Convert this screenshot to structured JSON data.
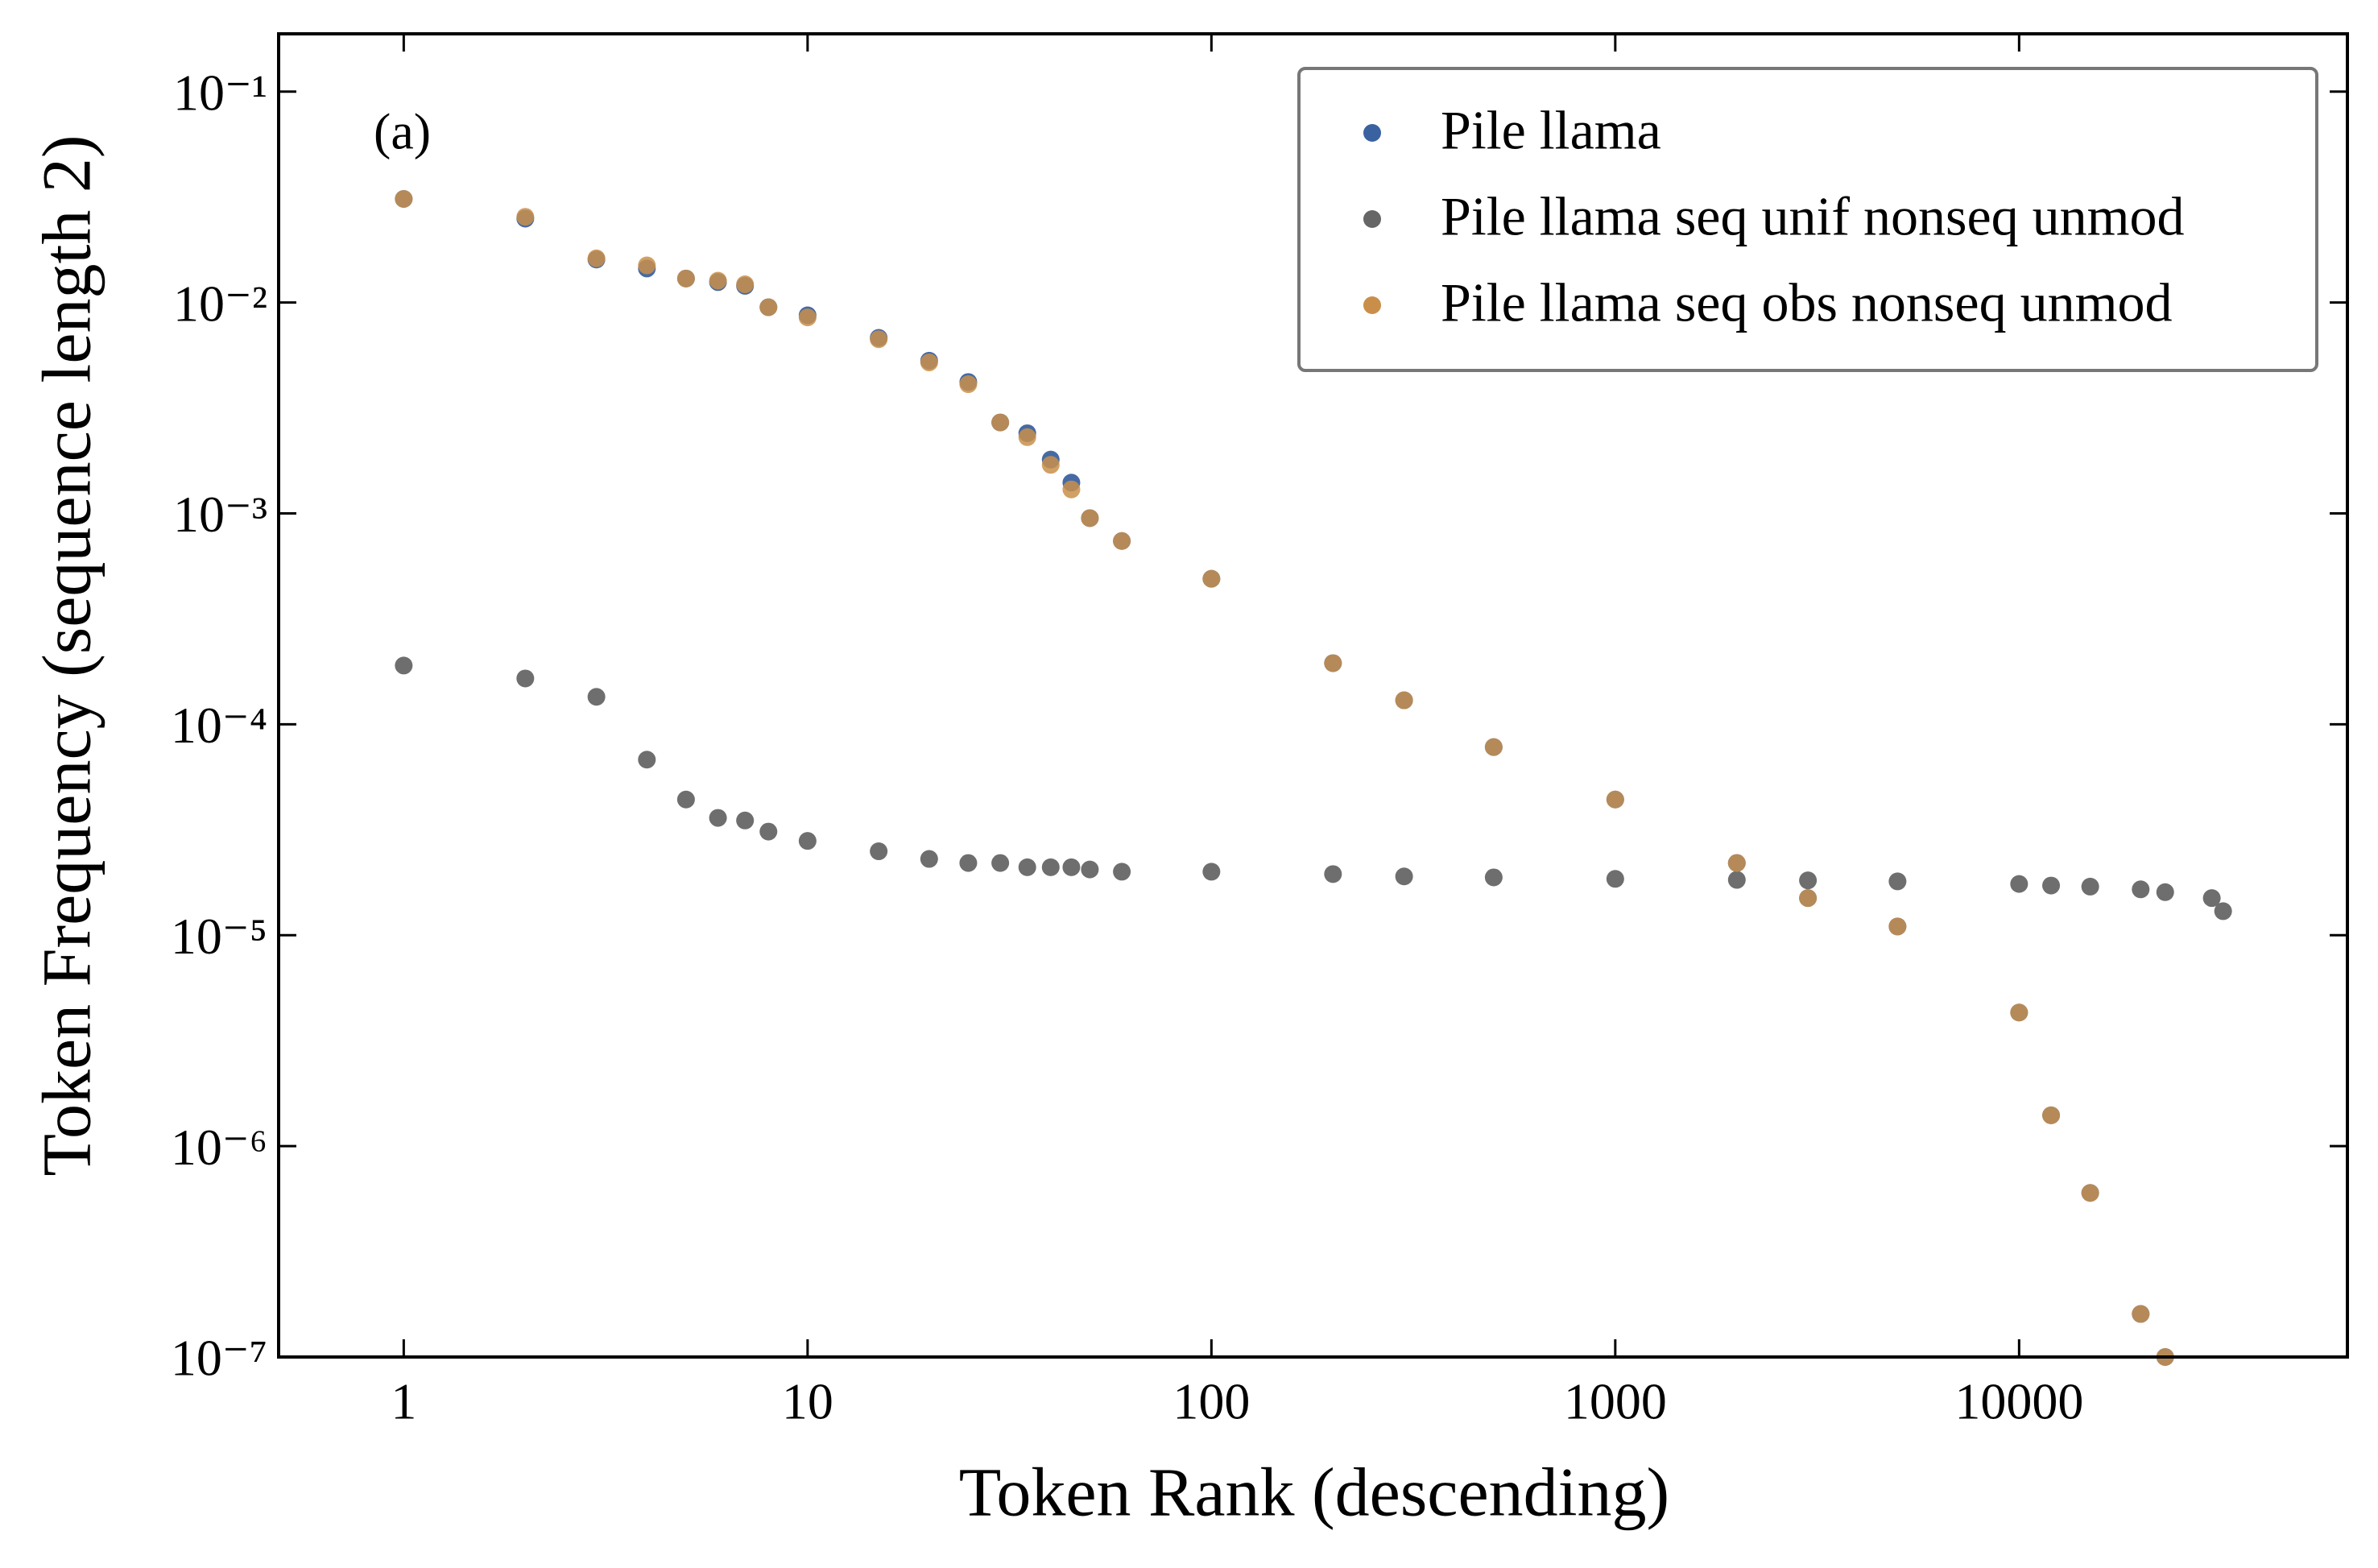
{
  "chart_data": {
    "type": "scatter",
    "annotation": "(a)",
    "x_label": "Token Rank (descending)",
    "y_label": "Token Frequency (sequence length 2)",
    "x": [
      1,
      2,
      3,
      4,
      5,
      6,
      7,
      8,
      10,
      15,
      20,
      25,
      30,
      35,
      40,
      45,
      50,
      60,
      100,
      200,
      300,
      500,
      1000,
      2000,
      3000,
      5000,
      10000,
      12000,
      15000,
      20000,
      23000,
      30000,
      32000
    ],
    "series": [
      {
        "name": "Pile llama",
        "color": "#3b62a0",
        "values": [
          0.031,
          0.025,
          0.016,
          0.0145,
          0.013,
          0.0125,
          0.012,
          0.0095,
          0.0087,
          0.0068,
          0.0053,
          0.0042,
          0.0027,
          0.0024,
          0.0018,
          0.0014,
          0.00095,
          0.00074,
          0.00049,
          0.000195,
          0.00013,
          7.8e-05,
          4.4e-05,
          2.2e-05,
          1.5e-05,
          1.1e-05,
          4.3e-06,
          1.4e-06,
          6e-07,
          1.6e-07,
          1e-07,
          null,
          null
        ]
      },
      {
        "name": "Pile llama seq unif nonseq unmod",
        "color": "#666666",
        "values": [
          0.00019,
          0.000165,
          0.000135,
          6.8e-05,
          4.4e-05,
          3.6e-05,
          3.5e-05,
          3.1e-05,
          2.8e-05,
          2.5e-05,
          2.3e-05,
          2.2e-05,
          2.2e-05,
          2.1e-05,
          2.1e-05,
          2.1e-05,
          2.05e-05,
          2e-05,
          2e-05,
          1.95e-05,
          1.9e-05,
          1.88e-05,
          1.85e-05,
          1.83e-05,
          1.82e-05,
          1.8e-05,
          1.75e-05,
          1.72e-05,
          1.7e-05,
          1.65e-05,
          1.6e-05,
          1.5e-05,
          1.3e-05
        ]
      },
      {
        "name": "Pile llama seq obs nonseq unmod",
        "color": "#c98f4a",
        "values": [
          0.031,
          0.0255,
          0.0162,
          0.015,
          0.013,
          0.0127,
          0.0122,
          0.0095,
          0.0085,
          0.0067,
          0.0052,
          0.0041,
          0.0027,
          0.0023,
          0.0017,
          0.0013,
          0.00095,
          0.00074,
          0.00049,
          0.000195,
          0.00013,
          7.8e-05,
          4.4e-05,
          2.2e-05,
          1.5e-05,
          1.1e-05,
          4.3e-06,
          1.4e-06,
          6e-07,
          1.6e-07,
          1e-07,
          null,
          null
        ]
      }
    ],
    "xscale": "log",
    "yscale": "log",
    "xlim": [
      0.49,
      65000
    ],
    "ylim": [
      1e-07,
      0.188
    ],
    "xticks": [
      1,
      10,
      100,
      1000,
      10000
    ],
    "yticks": [
      {
        "value": 0.1,
        "label": "10⁻¹"
      },
      {
        "value": 0.01,
        "label": "10⁻²"
      },
      {
        "value": 0.001,
        "label": "10⁻³"
      },
      {
        "value": 0.0001,
        "label": "10⁻⁴"
      },
      {
        "value": 1e-05,
        "label": "10⁻⁵"
      },
      {
        "value": 1e-06,
        "label": "10⁻⁶"
      },
      {
        "value": 1e-07,
        "label": "10⁻⁷"
      }
    ],
    "grid": false,
    "legend": "upper right"
  }
}
